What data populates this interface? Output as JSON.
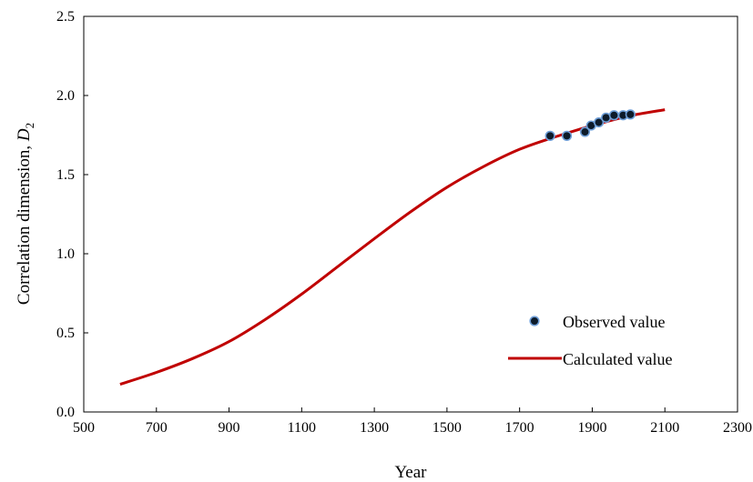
{
  "chart_data": {
    "type": "scatter",
    "title": "",
    "xlabel": "Year",
    "ylabel": "Correlation dimension, ",
    "ylabel_symbol": "D",
    "ylabel_subscript": "2",
    "xlim": [
      500,
      2300
    ],
    "ylim": [
      0.0,
      2.5
    ],
    "x_ticks": [
      500,
      700,
      900,
      1100,
      1300,
      1500,
      1700,
      1900,
      2100,
      2300
    ],
    "y_ticks": [
      0.0,
      0.5,
      1.0,
      1.5,
      2.0,
      2.5
    ],
    "x_tick_labels": [
      "500",
      "700",
      "900",
      "1100",
      "1300",
      "1500",
      "1700",
      "1900",
      "2100",
      "2300"
    ],
    "y_tick_labels": [
      "0.0",
      "0.5",
      "1.0",
      "1.5",
      "2.0",
      "2.5"
    ],
    "grid": false,
    "legend_position": "bottom-right",
    "series": [
      {
        "name": "Observed value",
        "kind": "scatter",
        "marker_fill": "#0d1b2a",
        "marker_edge": "#6f9fd8",
        "x": [
          1784,
          1830,
          1880,
          1897,
          1918,
          1938,
          1960,
          1985,
          2005
        ],
        "y": [
          1.745,
          1.745,
          1.77,
          1.81,
          1.83,
          1.86,
          1.875,
          1.875,
          1.88
        ]
      },
      {
        "name": "Calculated value",
        "kind": "line",
        "color": "#c00000",
        "x": [
          600,
          700,
          800,
          900,
          1000,
          1100,
          1200,
          1300,
          1400,
          1500,
          1600,
          1700,
          1800,
          1900,
          2000,
          2100
        ],
        "y": [
          0.175,
          0.25,
          0.338,
          0.445,
          0.585,
          0.745,
          0.92,
          1.095,
          1.265,
          1.42,
          1.55,
          1.66,
          1.74,
          1.81,
          1.87,
          1.91
        ]
      }
    ]
  }
}
